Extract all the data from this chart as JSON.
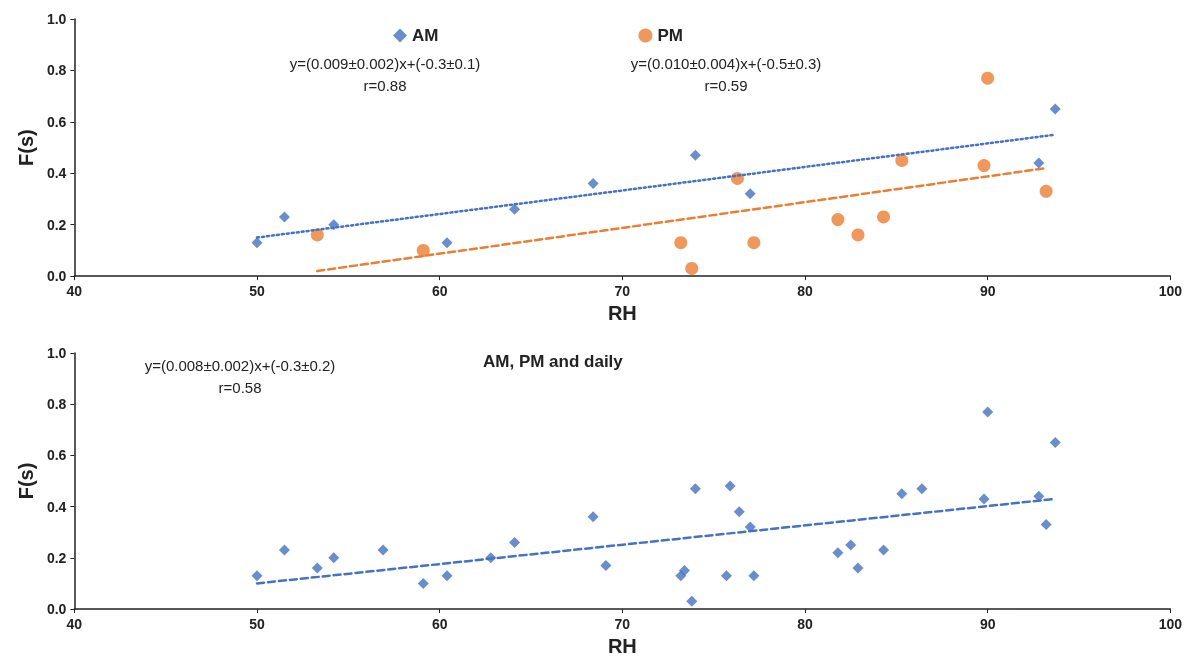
{
  "chart_data": [
    {
      "type": "scatter",
      "xlabel": "RH",
      "ylabel": "F(s)",
      "xlim": [
        40,
        100
      ],
      "xticks": [
        40,
        50,
        60,
        70,
        80,
        90,
        100
      ],
      "ylim": [
        0,
        1
      ],
      "yticks": [
        {
          "value": 0,
          "label": "0.0"
        },
        {
          "value": 0.2,
          "label": "0.2"
        },
        {
          "value": 0.4,
          "label": "0.4"
        },
        {
          "value": 0.6,
          "label": "0.6"
        },
        {
          "value": 0.8,
          "label": "0.8"
        },
        {
          "value": 1,
          "label": "1.0"
        }
      ],
      "grid": false,
      "legend": "top",
      "annotations": [
        "y=(0.009±0.002)x+(-0.3±0.1)\nr=0.88",
        "y=(0.010±0.004)x+(-0.5±0.3)\nr=0.59"
      ],
      "series": [
        {
          "name": "AM",
          "type": "scatter",
          "marker": "diamond",
          "color": "#4472c4",
          "x": [
            50,
            51.5,
            54.2,
            60.4,
            64.1,
            68.4,
            74,
            77,
            92.8,
            93.7
          ],
          "values": [
            0.13,
            0.23,
            0.2,
            0.13,
            0.26,
            0.36,
            0.47,
            0.32,
            0.44,
            0.65
          ]
        },
        {
          "name": "PM",
          "type": "scatter",
          "marker": "circle",
          "color": "#ed7d31",
          "x": [
            53.3,
            59.1,
            73.2,
            73.8,
            76.3,
            77.2,
            81.8,
            82.9,
            84.3,
            85.3,
            89.8,
            90,
            93.2
          ],
          "values": [
            0.16,
            0.1,
            0.13,
            0.03,
            0.38,
            0.13,
            0.22,
            0.16,
            0.23,
            0.45,
            0.43,
            0.77,
            0.33
          ]
        },
        {
          "type": "line",
          "marker": "none",
          "line_style": "dotted",
          "color": "#4472c4",
          "x": [
            50,
            93.7
          ],
          "values": [
            0.15,
            0.55
          ]
        },
        {
          "type": "line",
          "marker": "none",
          "line_style": "dashed",
          "color": "#ed7d31",
          "x": [
            53.3,
            93.2
          ],
          "values": [
            0.02,
            0.42
          ]
        }
      ]
    },
    {
      "type": "scatter",
      "title": "AM, PM and daily",
      "xlabel": "RH",
      "ylabel": "F(s)",
      "xlim": [
        40,
        100
      ],
      "xticks": [
        40,
        50,
        60,
        70,
        80,
        90,
        100
      ],
      "ylim": [
        0,
        1
      ],
      "yticks": [
        {
          "value": 0,
          "label": "0.0"
        },
        {
          "value": 0.2,
          "label": "0.2"
        },
        {
          "value": 0.4,
          "label": "0.4"
        },
        {
          "value": 0.6,
          "label": "0.6"
        },
        {
          "value": 0.8,
          "label": "0.8"
        },
        {
          "value": 1,
          "label": "1.0"
        }
      ],
      "grid": false,
      "annotations": [
        "y=(0.008±0.002)x+(-0.3±0.2)\nr=0.58"
      ],
      "series": [
        {
          "type": "scatter",
          "marker": "diamond",
          "color": "#4472c4",
          "x": [
            50,
            51.5,
            53.3,
            54.2,
            56.9,
            59.1,
            60.4,
            62.8,
            64.1,
            68.4,
            69.1,
            73.2,
            73.4,
            73.8,
            74,
            75.7,
            75.9,
            76.4,
            77,
            77.2,
            81.8,
            82.5,
            82.9,
            84.3,
            85.3,
            86.4,
            89.8,
            90,
            92.8,
            93.2,
            93.7
          ],
          "values": [
            0.13,
            0.23,
            0.16,
            0.2,
            0.23,
            0.1,
            0.13,
            0.2,
            0.26,
            0.36,
            0.17,
            0.13,
            0.15,
            0.03,
            0.47,
            0.13,
            0.48,
            0.38,
            0.32,
            0.13,
            0.22,
            0.25,
            0.16,
            0.23,
            0.45,
            0.47,
            0.43,
            0.77,
            0.44,
            0.33,
            0.65
          ]
        },
        {
          "type": "line",
          "marker": "none",
          "line_style": "dashed",
          "color": "#4472c4",
          "x": [
            50,
            93.7
          ],
          "values": [
            0.1,
            0.43
          ]
        }
      ]
    }
  ]
}
